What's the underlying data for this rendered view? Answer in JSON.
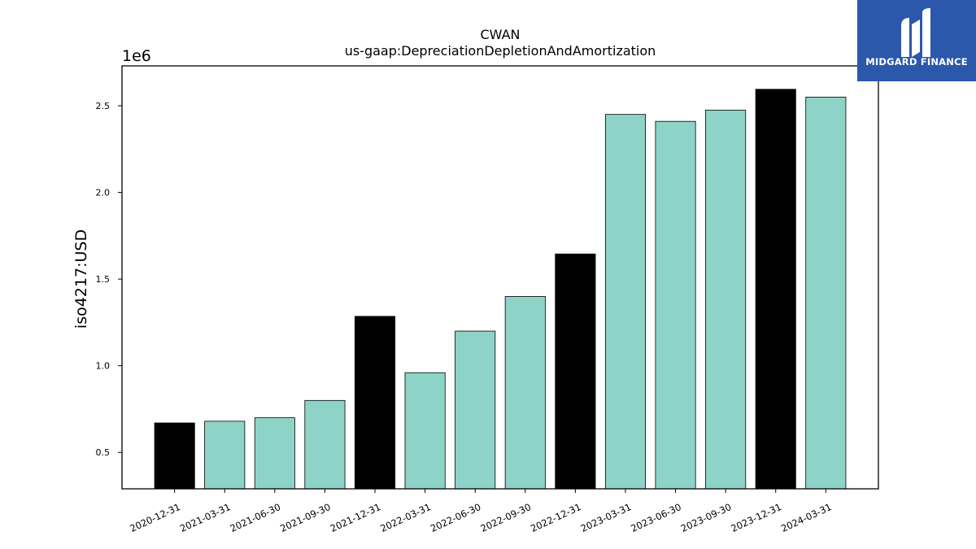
{
  "chart_data": {
    "type": "bar",
    "title": "CWAN",
    "subtitle": "us-gaap:DepreciationDepletionAndAmortization",
    "ylabel": "iso4217:USD",
    "xlabel": "",
    "offset_text": "1e6",
    "scale": 1000000,
    "ylim": [
      0.29,
      2.73
    ],
    "yticks": [
      0.5,
      1.0,
      1.5,
      2.0,
      2.5
    ],
    "ytick_labels": [
      "0.5",
      "1.0",
      "1.5",
      "2.0",
      "2.5"
    ],
    "grid": false,
    "categories": [
      "2020-12-31",
      "2021-03-31",
      "2021-06-30",
      "2021-09-30",
      "2021-12-31",
      "2022-03-31",
      "2022-06-30",
      "2022-09-30",
      "2022-12-31",
      "2023-03-31",
      "2023-06-30",
      "2023-09-30",
      "2023-12-31",
      "2024-03-31"
    ],
    "values": [
      0.67,
      0.68,
      0.7,
      0.8,
      1.285,
      0.96,
      1.2,
      1.4,
      1.645,
      2.45,
      2.41,
      2.475,
      2.595,
      2.55
    ],
    "highlight": [
      true,
      false,
      false,
      false,
      true,
      false,
      false,
      false,
      true,
      false,
      false,
      false,
      true,
      false
    ],
    "colors": {
      "bar": "#8dd3c7",
      "highlight": "#000000",
      "edge": "#000000"
    }
  },
  "logo": {
    "text": "MIDGARD FINANCE"
  }
}
